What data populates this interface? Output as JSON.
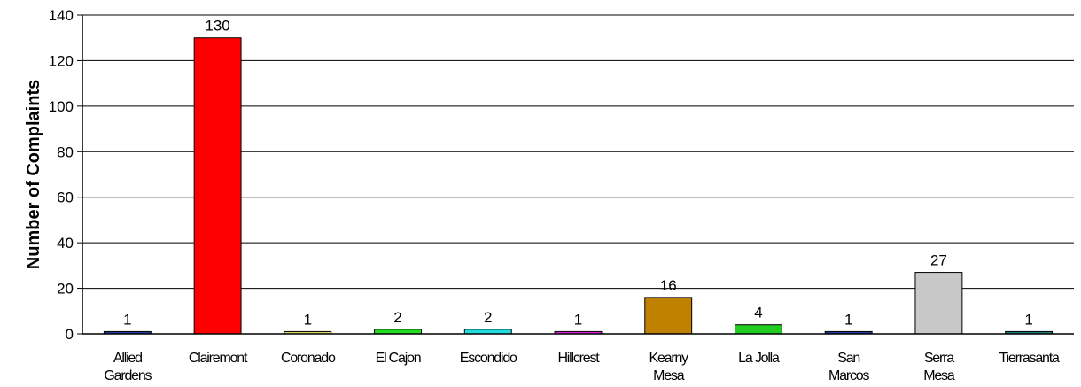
{
  "chart_data": {
    "type": "bar",
    "title": "",
    "xlabel": "",
    "ylabel": "Number of Complaints",
    "ylim": [
      0,
      140
    ],
    "yticks": [
      0,
      20,
      40,
      60,
      80,
      100,
      120,
      140
    ],
    "grid": true,
    "legend": "none",
    "categories": [
      [
        "Allied",
        "Gardens"
      ],
      [
        "Clairemont"
      ],
      [
        "Coronado"
      ],
      [
        "El Cajon"
      ],
      [
        "Escondido"
      ],
      [
        "Hillcrest"
      ],
      [
        "Kearny",
        "Mesa"
      ],
      [
        "La Jolla"
      ],
      [
        "San",
        "Marcos"
      ],
      [
        "Serra",
        "Mesa"
      ],
      [
        "Tierrasanta"
      ]
    ],
    "values": [
      1,
      130,
      1,
      2,
      2,
      1,
      16,
      4,
      1,
      27,
      1
    ],
    "data_labels": [
      "1",
      "130",
      "1",
      "2",
      "2",
      "1",
      "16",
      "4",
      "1",
      "27",
      "1"
    ],
    "colors": [
      "#1f3f9f",
      "#ff0000",
      "#d8d86a",
      "#22dd22",
      "#22dddd",
      "#dd22dd",
      "#c08000",
      "#22cc22",
      "#1f3f9f",
      "#c8c8c8",
      "#1f7f7f"
    ]
  }
}
